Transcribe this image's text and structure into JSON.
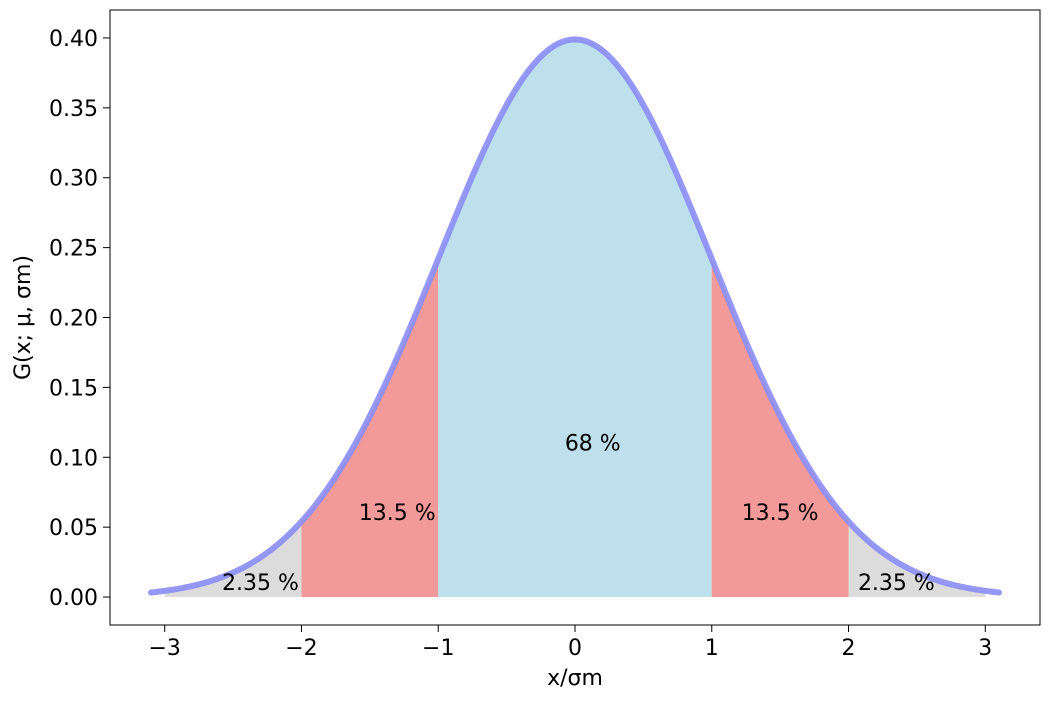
{
  "chart_data": {
    "type": "area",
    "xlabel": "x/σm",
    "ylabel": "G(x; μ, σm)",
    "xlim": [
      -3.4,
      3.4
    ],
    "ylim": [
      -0.02,
      0.42
    ],
    "grid": false,
    "curve": {
      "name": "Gaussian",
      "mu": 0,
      "sigma": 1,
      "x_range": [
        -3.1,
        3.1
      ],
      "color": "#8a8df5"
    },
    "x_ticks": [
      {
        "value": -3,
        "label": "−3"
      },
      {
        "value": -2,
        "label": "−2"
      },
      {
        "value": -1,
        "label": "−1"
      },
      {
        "value": 0,
        "label": "0"
      },
      {
        "value": 1,
        "label": "1"
      },
      {
        "value": 2,
        "label": "2"
      },
      {
        "value": 3,
        "label": "3"
      }
    ],
    "y_ticks": [
      {
        "value": 0.0,
        "label": "0.00"
      },
      {
        "value": 0.05,
        "label": "0.05"
      },
      {
        "value": 0.1,
        "label": "0.10"
      },
      {
        "value": 0.15,
        "label": "0.15"
      },
      {
        "value": 0.2,
        "label": "0.20"
      },
      {
        "value": 0.25,
        "label": "0.25"
      },
      {
        "value": 0.3,
        "label": "0.30"
      },
      {
        "value": 0.35,
        "label": "0.35"
      },
      {
        "value": 0.4,
        "label": "0.40"
      }
    ],
    "regions": [
      {
        "from": -3,
        "to": -2,
        "color": "#dcdcdc"
      },
      {
        "from": -2,
        "to": -1,
        "color": "#f29999"
      },
      {
        "from": -1,
        "to": 1,
        "color": "#bde0ec"
      },
      {
        "from": 1,
        "to": 2,
        "color": "#f29999"
      },
      {
        "from": 2,
        "to": 3,
        "color": "#dcdcdc"
      }
    ],
    "annotations": [
      {
        "text": "68 %",
        "x": 0.13,
        "y": 0.105
      },
      {
        "text": "13.5 %",
        "x": -1.3,
        "y": 0.055
      },
      {
        "text": "13.5 %",
        "x": 1.5,
        "y": 0.055
      },
      {
        "text": "2.35 %",
        "x": -2.3,
        "y": 0.005
      },
      {
        "text": "2.35 %",
        "x": 2.35,
        "y": 0.005
      }
    ]
  }
}
